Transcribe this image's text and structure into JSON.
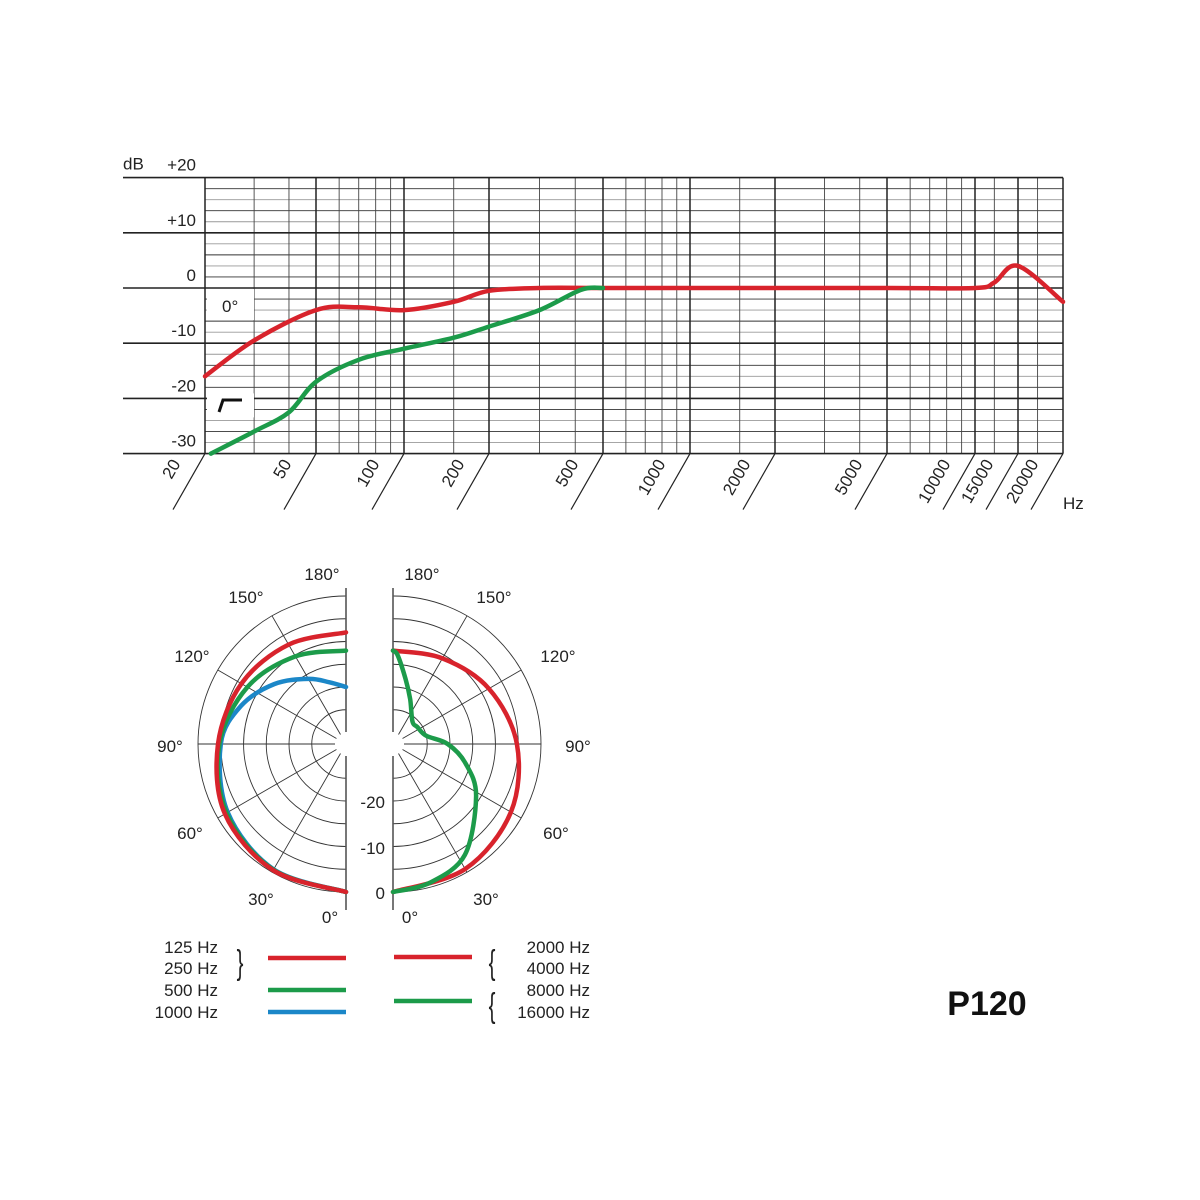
{
  "model": "P120",
  "colors": {
    "red": "#d8232c",
    "green": "#1c9b4a",
    "blue": "#1b87c8",
    "grid": "#222222"
  },
  "chart_data": [
    {
      "type": "line",
      "title": "",
      "ylabel": "dB",
      "xlabel": "Hz",
      "xscale": "log",
      "grid": true,
      "ylim": [
        -30,
        20
      ],
      "xlim": [
        20,
        20000
      ],
      "y_ticks": [
        "+20",
        "+10",
        "0",
        "-10",
        "-20",
        "-30"
      ],
      "y_tick_values": [
        20,
        10,
        0,
        -10,
        -20,
        -30
      ],
      "x_ticks": [
        "20",
        "50",
        "100",
        "200",
        "500",
        "1000",
        "2000",
        "5000",
        "10000",
        "15000",
        "20000"
      ],
      "x_tick_values": [
        20,
        50,
        100,
        200,
        500,
        1000,
        2000,
        5000,
        10000,
        15000,
        20000
      ],
      "annotations": [
        "0°"
      ],
      "icons": [
        "low-cut-filter-icon"
      ],
      "series": [
        {
          "color": "red",
          "x": [
            20,
            30,
            50,
            70,
            100,
            150,
            200,
            300,
            500,
            1000,
            5000,
            10000,
            12000,
            15000,
            20000
          ],
          "y": [
            -16,
            -9.5,
            -4,
            -3.5,
            -4,
            -2.5,
            -0.5,
            0,
            0,
            0,
            0,
            0,
            1,
            4,
            -2.5
          ]
        },
        {
          "color": "green",
          "x": [
            21,
            30,
            40,
            50,
            70,
            100,
            150,
            200,
            300,
            420,
            500
          ],
          "y": [
            -30,
            -26,
            -22.5,
            -17,
            -13,
            -11,
            -9,
            -7,
            -4,
            -0.3,
            0
          ]
        }
      ]
    },
    {
      "type": "polar",
      "title": "",
      "angle_labels": [
        "180°",
        "150°",
        "120°",
        "90°",
        "60°",
        "30°",
        "0°"
      ],
      "radial_labels": [
        "-20",
        "-10",
        "0"
      ],
      "rlim": [
        -30,
        0
      ],
      "left": {
        "series": [
          {
            "name": "125 Hz / 250 Hz",
            "color": "red",
            "angle": [
              0,
              30,
              60,
              90,
              120,
              150,
              180
            ],
            "db": [
              0,
              -0.5,
              -1.8,
              -4.4,
              -6,
              -7.3,
              -8
            ]
          },
          {
            "name": "500 Hz",
            "color": "green",
            "angle": [
              0,
              30,
              60,
              90,
              120,
              150,
              180
            ],
            "db": [
              0,
              -0.6,
              -2.2,
              -4.7,
              -7.5,
              -10.3,
              -12
            ]
          },
          {
            "name": "1000 Hz",
            "color": "blue",
            "angle": [
              0,
              30,
              60,
              90,
              110,
              130,
              150,
              165,
              180
            ],
            "db": [
              0,
              -0.7,
              -2.5,
              -5,
              -8,
              -12,
              -16,
              -18.5,
              -20
            ]
          }
        ]
      },
      "right": {
        "series": [
          {
            "name": "2000 Hz / 4000 Hz",
            "color": "red",
            "angle": [
              0,
              30,
              60,
              90,
              120,
              150,
              180
            ],
            "db": [
              0,
              -0.8,
              -2.6,
              -5.3,
              -8.2,
              -10.8,
              -12
            ]
          },
          {
            "name": "8000 Hz / 16000 Hz",
            "color": "green",
            "angle": [
              0,
              15,
              33,
              58,
              75,
              90,
              104,
              125,
              139,
              159,
              169,
              177,
              180
            ],
            "db": [
              0,
              -1,
              -3.5,
              -11,
              -16,
              -20.5,
              -25,
              -26,
              -26,
              -22,
              -18,
              -13,
              -12
            ]
          }
        ]
      }
    }
  ],
  "legend": {
    "left": [
      {
        "labels": [
          "125 Hz",
          "250 Hz"
        ],
        "color": "red",
        "brace": "}"
      },
      {
        "labels": [
          "500 Hz"
        ],
        "color": "green"
      },
      {
        "labels": [
          "1000 Hz"
        ],
        "color": "blue"
      }
    ],
    "right": [
      {
        "labels": [
          "2000 Hz",
          "4000 Hz"
        ],
        "color": "red",
        "brace": "{"
      },
      {
        "labels": [
          "8000 Hz",
          "16000 Hz"
        ],
        "color": "green",
        "brace": "{"
      }
    ]
  }
}
